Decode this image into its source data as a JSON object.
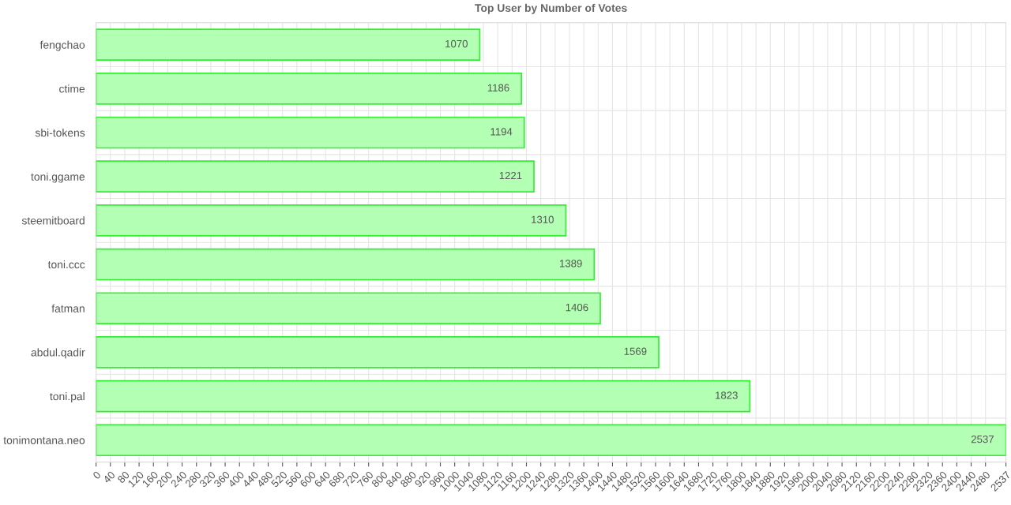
{
  "chart_data": {
    "type": "bar",
    "orientation": "horizontal",
    "title": "Top User by Number of Votes",
    "categories": [
      "fengchao",
      "ctime",
      "sbi-tokens",
      "toni.ggame",
      "steemitboard",
      "toni.ccc",
      "fatman",
      "abdul.qadir",
      "toni.pal",
      "tonimontana.neo"
    ],
    "series": [
      {
        "color": "#b3ffb3",
        "values": [
          1070,
          1186,
          1194,
          1221,
          1310,
          1389,
          1406,
          1569,
          1823,
          2537
        ]
      }
    ],
    "xlim": [
      0,
      2537
    ],
    "xticks": [
      0,
      40,
      80,
      120,
      160,
      200,
      240,
      280,
      320,
      360,
      400,
      440,
      480,
      520,
      560,
      600,
      640,
      680,
      720,
      760,
      800,
      840,
      880,
      920,
      960,
      1000,
      1040,
      1080,
      1120,
      1160,
      1200,
      1240,
      1280,
      1320,
      1360,
      1400,
      1440,
      1480,
      1520,
      1560,
      1600,
      1640,
      1680,
      1720,
      1760,
      1800,
      1840,
      1880,
      1920,
      1960,
      2000,
      2040,
      2080,
      2120,
      2160,
      2200,
      2240,
      2280,
      2320,
      2360,
      2400,
      2440,
      2480,
      2537
    ],
    "grid": true,
    "data_labels": true
  }
}
